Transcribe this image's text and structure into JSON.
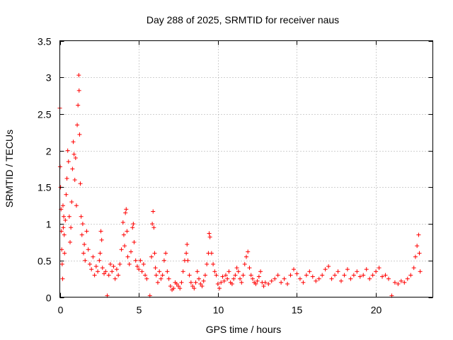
{
  "chart_data": {
    "type": "scatter",
    "title": "Day 288 of 2025, SRMTID for receiver naus",
    "xlabel": "GPS time / hours",
    "ylabel": "SRMTID / TECUs",
    "xlim": [
      0,
      23.6
    ],
    "ylim": [
      0,
      3.5
    ],
    "xticks": [
      0,
      5,
      10,
      15,
      20
    ],
    "xtick_labels": [
      "0",
      "5",
      "10",
      "15",
      "20"
    ],
    "yticks": [
      0,
      0.5,
      1,
      1.5,
      2,
      2.5,
      3,
      3.5
    ],
    "ytick_labels": [
      "0",
      "0.5",
      "1",
      "1.5",
      "2",
      "2.5",
      "3",
      "3.5"
    ],
    "grid": true,
    "legend": "none",
    "series": [
      {
        "name": "SRMTID",
        "color": "#ff0000",
        "marker": "plus",
        "points": [
          [
            0.0,
            2.58
          ],
          [
            0.02,
            1.78
          ],
          [
            0.05,
            1.5
          ],
          [
            0.08,
            1.2
          ],
          [
            0.1,
            0.9
          ],
          [
            0.12,
            0.65
          ],
          [
            0.15,
            0.45
          ],
          [
            0.18,
            0.25
          ],
          [
            0.2,
            1.25
          ],
          [
            0.22,
            0.95
          ],
          [
            0.25,
            1.1
          ],
          [
            0.28,
            0.85
          ],
          [
            0.3,
            0.6
          ],
          [
            0.35,
            1.05
          ],
          [
            0.4,
            1.4
          ],
          [
            0.45,
            1.62
          ],
          [
            0.5,
            2.0
          ],
          [
            0.55,
            1.85
          ],
          [
            0.6,
            1.1
          ],
          [
            0.65,
            0.75
          ],
          [
            0.7,
            0.95
          ],
          [
            0.75,
            1.3
          ],
          [
            0.8,
            1.75
          ],
          [
            0.85,
            2.12
          ],
          [
            0.9,
            1.95
          ],
          [
            0.95,
            1.6
          ],
          [
            1.0,
            1.9
          ],
          [
            1.05,
            1.25
          ],
          [
            1.1,
            2.35
          ],
          [
            1.15,
            2.62
          ],
          [
            1.2,
            3.03
          ],
          [
            1.22,
            2.82
          ],
          [
            1.25,
            2.22
          ],
          [
            1.3,
            1.55
          ],
          [
            1.35,
            1.1
          ],
          [
            1.4,
            0.85
          ],
          [
            1.45,
            1.0
          ],
          [
            1.5,
            0.6
          ],
          [
            1.55,
            0.72
          ],
          [
            1.6,
            0.5
          ],
          [
            1.7,
            0.9
          ],
          [
            1.8,
            0.65
          ],
          [
            1.9,
            0.45
          ],
          [
            2.0,
            0.38
          ],
          [
            2.1,
            0.55
          ],
          [
            2.2,
            0.3
          ],
          [
            2.3,
            0.42
          ],
          [
            2.4,
            0.35
          ],
          [
            2.5,
            0.5
          ],
          [
            2.55,
            0.6
          ],
          [
            2.6,
            0.9
          ],
          [
            2.65,
            0.78
          ],
          [
            2.7,
            0.4
          ],
          [
            2.8,
            0.32
          ],
          [
            2.9,
            0.35
          ],
          [
            3.0,
            0.02
          ],
          [
            3.1,
            0.3
          ],
          [
            3.2,
            0.45
          ],
          [
            3.3,
            0.35
          ],
          [
            3.4,
            0.42
          ],
          [
            3.5,
            0.25
          ],
          [
            3.6,
            0.38
          ],
          [
            3.7,
            0.3
          ],
          [
            3.8,
            0.45
          ],
          [
            3.9,
            0.65
          ],
          [
            4.0,
            1.02
          ],
          [
            4.05,
            0.85
          ],
          [
            4.1,
            0.7
          ],
          [
            4.15,
            1.15
          ],
          [
            4.2,
            1.2
          ],
          [
            4.25,
            0.9
          ],
          [
            4.3,
            0.55
          ],
          [
            4.4,
            0.45
          ],
          [
            4.5,
            0.62
          ],
          [
            4.6,
            0.95
          ],
          [
            4.65,
            1.0
          ],
          [
            4.7,
            0.75
          ],
          [
            4.8,
            0.5
          ],
          [
            4.9,
            0.42
          ],
          [
            5.0,
            0.38
          ],
          [
            5.1,
            0.5
          ],
          [
            5.2,
            0.35
          ],
          [
            5.3,
            0.45
          ],
          [
            5.4,
            0.3
          ],
          [
            5.5,
            0.25
          ],
          [
            5.7,
            0.02
          ],
          [
            5.8,
            0.55
          ],
          [
            5.85,
            1.0
          ],
          [
            5.9,
            1.17
          ],
          [
            5.95,
            0.95
          ],
          [
            6.0,
            0.6
          ],
          [
            6.05,
            0.4
          ],
          [
            6.1,
            0.3
          ],
          [
            6.2,
            0.2
          ],
          [
            6.3,
            0.35
          ],
          [
            6.4,
            0.25
          ],
          [
            6.5,
            0.3
          ],
          [
            6.6,
            0.5
          ],
          [
            6.7,
            0.6
          ],
          [
            6.8,
            0.35
          ],
          [
            6.9,
            0.25
          ],
          [
            7.0,
            0.15
          ],
          [
            7.1,
            0.1
          ],
          [
            7.2,
            0.12
          ],
          [
            7.3,
            0.2
          ],
          [
            7.4,
            0.18
          ],
          [
            7.5,
            0.15
          ],
          [
            7.6,
            0.12
          ],
          [
            7.7,
            0.2
          ],
          [
            7.8,
            0.35
          ],
          [
            7.9,
            0.5
          ],
          [
            8.0,
            0.6
          ],
          [
            8.05,
            0.72
          ],
          [
            8.1,
            0.5
          ],
          [
            8.2,
            0.3
          ],
          [
            8.3,
            0.2
          ],
          [
            8.4,
            0.15
          ],
          [
            8.5,
            0.12
          ],
          [
            8.6,
            0.2
          ],
          [
            8.7,
            0.35
          ],
          [
            8.8,
            0.25
          ],
          [
            8.9,
            0.18
          ],
          [
            9.0,
            0.15
          ],
          [
            9.1,
            0.22
          ],
          [
            9.2,
            0.3
          ],
          [
            9.3,
            0.45
          ],
          [
            9.4,
            0.6
          ],
          [
            9.45,
            0.87
          ],
          [
            9.5,
            0.82
          ],
          [
            9.6,
            0.6
          ],
          [
            9.7,
            0.45
          ],
          [
            9.8,
            0.35
          ],
          [
            9.9,
            0.3
          ],
          [
            10.0,
            0.18
          ],
          [
            10.1,
            0.12
          ],
          [
            10.2,
            0.2
          ],
          [
            10.3,
            0.28
          ],
          [
            10.4,
            0.22
          ],
          [
            10.5,
            0.3
          ],
          [
            10.6,
            0.25
          ],
          [
            10.7,
            0.35
          ],
          [
            10.8,
            0.2
          ],
          [
            10.9,
            0.18
          ],
          [
            11.0,
            0.25
          ],
          [
            11.1,
            0.3
          ],
          [
            11.2,
            0.4
          ],
          [
            11.3,
            0.35
          ],
          [
            11.4,
            0.25
          ],
          [
            11.5,
            0.2
          ],
          [
            11.6,
            0.3
          ],
          [
            11.7,
            0.45
          ],
          [
            11.8,
            0.55
          ],
          [
            11.9,
            0.62
          ],
          [
            12.0,
            0.4
          ],
          [
            12.1,
            0.3
          ],
          [
            12.2,
            0.25
          ],
          [
            12.3,
            0.2
          ],
          [
            12.4,
            0.18
          ],
          [
            12.5,
            0.22
          ],
          [
            12.6,
            0.28
          ],
          [
            12.7,
            0.35
          ],
          [
            12.8,
            0.2
          ],
          [
            12.9,
            0.15
          ],
          [
            13.0,
            0.2
          ],
          [
            13.2,
            0.18
          ],
          [
            13.4,
            0.22
          ],
          [
            13.6,
            0.25
          ],
          [
            13.8,
            0.3
          ],
          [
            14.0,
            0.2
          ],
          [
            14.2,
            0.25
          ],
          [
            14.4,
            0.18
          ],
          [
            14.6,
            0.3
          ],
          [
            14.8,
            0.38
          ],
          [
            15.0,
            0.32
          ],
          [
            15.2,
            0.25
          ],
          [
            15.4,
            0.2
          ],
          [
            15.6,
            0.3
          ],
          [
            15.8,
            0.35
          ],
          [
            16.0,
            0.28
          ],
          [
            16.2,
            0.22
          ],
          [
            16.4,
            0.25
          ],
          [
            16.6,
            0.3
          ],
          [
            16.8,
            0.38
          ],
          [
            17.0,
            0.42
          ],
          [
            17.2,
            0.25
          ],
          [
            17.4,
            0.3
          ],
          [
            17.6,
            0.35
          ],
          [
            17.8,
            0.22
          ],
          [
            18.0,
            0.3
          ],
          [
            18.2,
            0.38
          ],
          [
            18.4,
            0.25
          ],
          [
            18.6,
            0.3
          ],
          [
            18.8,
            0.35
          ],
          [
            19.0,
            0.28
          ],
          [
            19.2,
            0.3
          ],
          [
            19.4,
            0.38
          ],
          [
            19.6,
            0.25
          ],
          [
            19.8,
            0.3
          ],
          [
            20.0,
            0.35
          ],
          [
            20.2,
            0.4
          ],
          [
            20.4,
            0.28
          ],
          [
            20.6,
            0.3
          ],
          [
            20.8,
            0.25
          ],
          [
            21.0,
            0.02
          ],
          [
            21.2,
            0.2
          ],
          [
            21.4,
            0.18
          ],
          [
            21.6,
            0.22
          ],
          [
            21.8,
            0.2
          ],
          [
            22.0,
            0.25
          ],
          [
            22.2,
            0.3
          ],
          [
            22.4,
            0.4
          ],
          [
            22.5,
            0.55
          ],
          [
            22.6,
            0.7
          ],
          [
            22.7,
            0.85
          ],
          [
            22.75,
            0.6
          ],
          [
            22.8,
            0.35
          ]
        ]
      }
    ]
  }
}
